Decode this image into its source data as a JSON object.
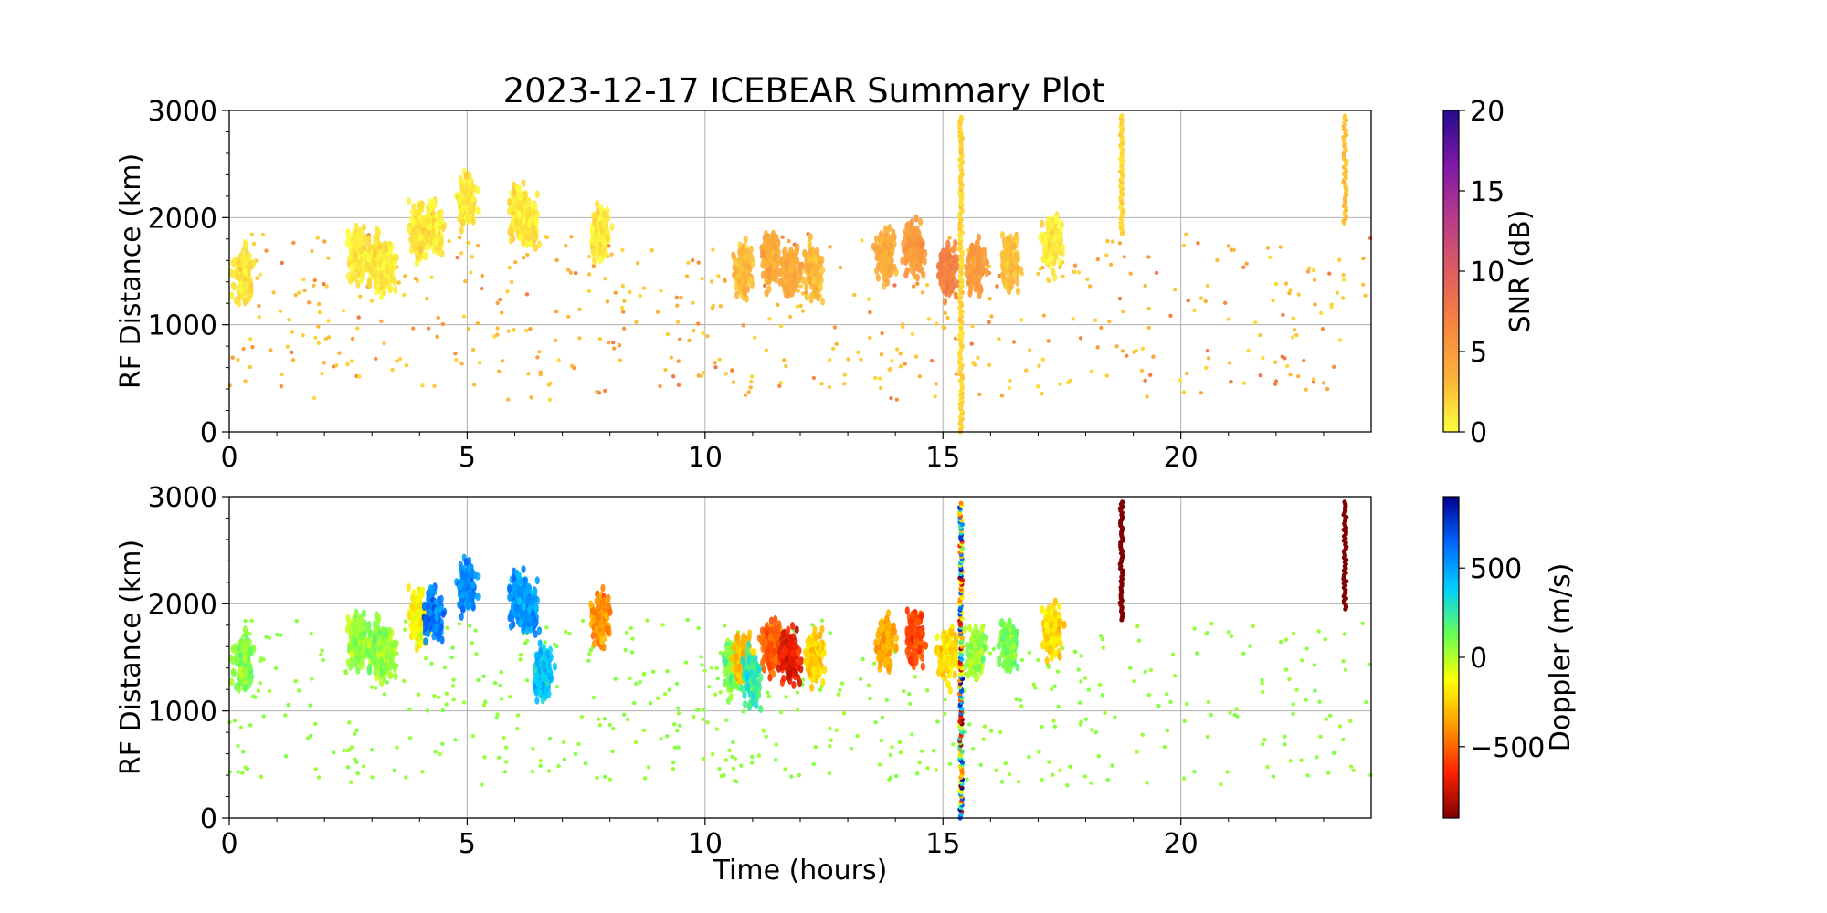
{
  "figure_title": "2023-12-17 ICEBEAR Summary Plot",
  "chart_data": [
    {
      "type": "scatter",
      "name": "snr-panel",
      "ylabel": "RF Distance (km)",
      "xlabel": "",
      "xlim": [
        0,
        24
      ],
      "ylim": [
        0,
        3000
      ],
      "xticks": [
        0,
        5,
        10,
        15,
        20
      ],
      "yticks": [
        0,
        1000,
        2000,
        3000
      ],
      "grid": true,
      "colorbar": {
        "label": "SNR (dB)",
        "range": [
          0,
          20
        ],
        "ticks": [
          0,
          5,
          10,
          15,
          20
        ],
        "colormap": [
          "#fcff3c",
          "#fcb23a",
          "#f7863f",
          "#dd5d5f",
          "#b83a8a",
          "#7e18a8",
          "#230b8e"
        ]
      },
      "series": [
        {
          "type": "blob",
          "points": [
            {
              "x": 0.3,
              "y": 1450,
              "v": 1
            },
            {
              "x": 2.7,
              "y": 1650,
              "v": 1
            },
            {
              "x": 3.1,
              "y": 1600,
              "v": 1
            },
            {
              "x": 3.3,
              "y": 1500,
              "v": 1
            },
            {
              "x": 4.0,
              "y": 1850,
              "v": 1
            },
            {
              "x": 4.3,
              "y": 1900,
              "v": 1
            },
            {
              "x": 5.0,
              "y": 2150,
              "v": 1
            },
            {
              "x": 6.1,
              "y": 2050,
              "v": 1
            },
            {
              "x": 6.3,
              "y": 1950,
              "v": 1
            },
            {
              "x": 7.8,
              "y": 1850,
              "v": 1
            },
            {
              "x": 10.8,
              "y": 1500,
              "v": 3
            },
            {
              "x": 11.4,
              "y": 1600,
              "v": 4
            },
            {
              "x": 11.8,
              "y": 1500,
              "v": 4
            },
            {
              "x": 12.3,
              "y": 1500,
              "v": 3
            },
            {
              "x": 13.8,
              "y": 1650,
              "v": 4
            },
            {
              "x": 14.4,
              "y": 1700,
              "v": 5
            },
            {
              "x": 15.1,
              "y": 1500,
              "v": 7
            },
            {
              "x": 15.7,
              "y": 1550,
              "v": 5
            },
            {
              "x": 16.4,
              "y": 1600,
              "v": 3
            },
            {
              "x": 17.3,
              "y": 1750,
              "v": 1
            }
          ],
          "streaks": [
            {
              "x": 15.38,
              "y0": 0,
              "y1": 2950,
              "v": 1
            },
            {
              "x": 18.75,
              "y0": 1850,
              "y1": 2950,
              "v": 1
            },
            {
              "x": 23.45,
              "y0": 1950,
              "y1": 2950,
              "v": 2
            }
          ]
        }
      ]
    },
    {
      "type": "scatter",
      "name": "doppler-panel",
      "ylabel": "RF Distance (km)",
      "xlabel": "Time (hours)",
      "xlim": [
        0,
        24
      ],
      "ylim": [
        0,
        3000
      ],
      "xticks": [
        0,
        5,
        10,
        15,
        20
      ],
      "yticks": [
        0,
        1000,
        2000,
        3000
      ],
      "grid": true,
      "colorbar": {
        "label": "Doppler (m/s)",
        "range": [
          -900,
          900
        ],
        "ticks": [
          -500,
          0,
          500
        ],
        "tick_labels": [
          "−500",
          "0",
          "500"
        ],
        "colormap": [
          "#7f0000",
          "#ff2200",
          "#ff9900",
          "#ffff00",
          "#66ff55",
          "#00d0ff",
          "#0066ff",
          "#00008f"
        ]
      },
      "series": [
        {
          "type": "blob",
          "points": [
            {
              "x": 0.3,
              "y": 1450,
              "v": 60
            },
            {
              "x": 2.7,
              "y": 1650,
              "v": 60
            },
            {
              "x": 3.1,
              "y": 1600,
              "v": 60
            },
            {
              "x": 3.3,
              "y": 1500,
              "v": 60
            },
            {
              "x": 4.0,
              "y": 1850,
              "v": -150
            },
            {
              "x": 4.3,
              "y": 1900,
              "v": 600
            },
            {
              "x": 5.0,
              "y": 2150,
              "v": 550
            },
            {
              "x": 6.1,
              "y": 2050,
              "v": 520
            },
            {
              "x": 6.3,
              "y": 1950,
              "v": 520
            },
            {
              "x": 6.6,
              "y": 1350,
              "v": 420
            },
            {
              "x": 7.8,
              "y": 1850,
              "v": -400
            },
            {
              "x": 10.6,
              "y": 1400,
              "v": 100
            },
            {
              "x": 10.8,
              "y": 1500,
              "v": -300
            },
            {
              "x": 11.0,
              "y": 1300,
              "v": 250
            },
            {
              "x": 11.4,
              "y": 1600,
              "v": -500
            },
            {
              "x": 11.8,
              "y": 1500,
              "v": -700
            },
            {
              "x": 12.3,
              "y": 1500,
              "v": -250
            },
            {
              "x": 13.8,
              "y": 1650,
              "v": -350
            },
            {
              "x": 14.4,
              "y": 1700,
              "v": -550
            },
            {
              "x": 15.1,
              "y": 1500,
              "v": -200
            },
            {
              "x": 15.7,
              "y": 1550,
              "v": 50
            },
            {
              "x": 16.4,
              "y": 1600,
              "v": 100
            },
            {
              "x": 17.3,
              "y": 1750,
              "v": -200
            }
          ],
          "streaks": [
            {
              "x": 15.38,
              "y0": 0,
              "y1": 2950,
              "v": 0,
              "multicolor": true
            },
            {
              "x": 18.75,
              "y0": 1850,
              "y1": 2950,
              "v": -900
            },
            {
              "x": 23.45,
              "y0": 1950,
              "y1": 2950,
              "v": -900
            }
          ]
        }
      ]
    }
  ]
}
